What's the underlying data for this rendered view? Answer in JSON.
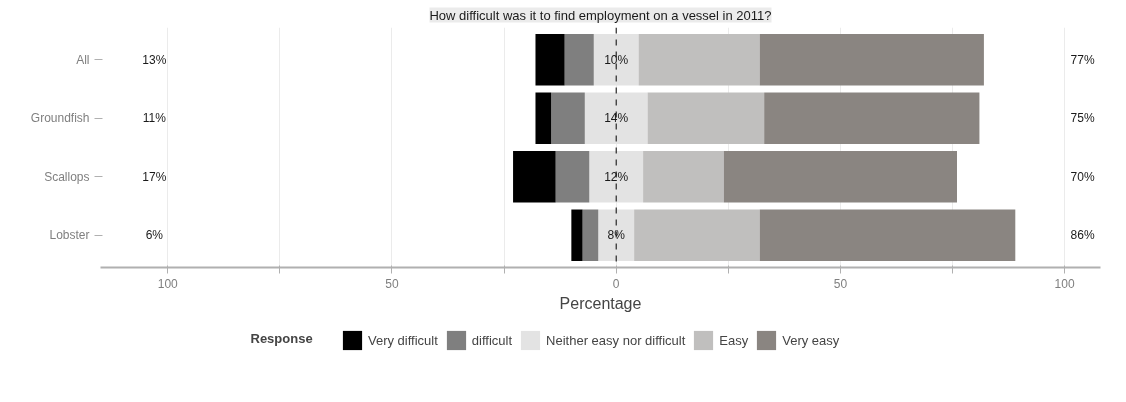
{
  "chart_data": {
    "type": "bar",
    "title": "How difficult was it to find employment on a vessel in 2011?",
    "xlabel": "Percentage",
    "legend_title": "Response",
    "orientation": "horizontal",
    "stacked": true,
    "categories": [
      "All",
      "Groundfish",
      "Scallops",
      "Lobster"
    ],
    "series": [
      {
        "name": "Neither easy nor difficult",
        "color": "#e3e3e3",
        "values": [
          -5,
          -7,
          -6,
          -4
        ]
      },
      {
        "name": "difficult",
        "color": "#7f7f7f",
        "values": [
          -6.5,
          -7.5,
          -7.5,
          -3.5
        ]
      },
      {
        "name": "Very difficult",
        "color": "#000000",
        "values": [
          -6.5,
          -3.5,
          -9.5,
          -2.5
        ]
      },
      {
        "color": "#e3e3e3",
        "values": [
          5,
          7,
          6,
          4
        ]
      },
      {
        "name": "Easy",
        "color": "#c0bfbe",
        "values": [
          27,
          26,
          18,
          28
        ]
      },
      {
        "name": "Very easy",
        "color": "#8a8581",
        "values": [
          50,
          48,
          52,
          57
        ]
      }
    ],
    "xlim": [
      -115,
      108
    ],
    "xticks": [
      {
        "value": -100,
        "label": "100"
      },
      {
        "value": -75,
        "label": null
      },
      {
        "value": -50,
        "label": "50"
      },
      {
        "value": -25,
        "label": null
      },
      0,
      {
        "value": 25,
        "label": null
      },
      50,
      {
        "value": 75,
        "label": null
      },
      100
    ],
    "grid": "x",
    "legend": "bottom",
    "ref_lines": [
      {
        "axis": "x",
        "value": 0,
        "color": "#000000",
        "line_style": "dashed"
      }
    ],
    "annotations": [
      "13%",
      "10%",
      "77%",
      "11%",
      "14%",
      "75%",
      "17%",
      "12%",
      "70%",
      "6%",
      "8%",
      "86%"
    ]
  }
}
